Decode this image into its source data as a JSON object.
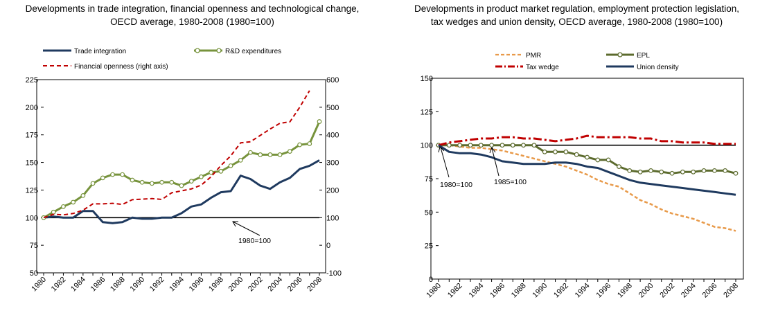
{
  "chart_data": [
    {
      "type": "line",
      "title_line1": "Developments in trade integration, financial openness and technological change,",
      "title_line2": "OECD average, 1980-2008 (1980=100)",
      "x": [
        1980,
        1981,
        1982,
        1983,
        1984,
        1985,
        1986,
        1987,
        1988,
        1989,
        1990,
        1991,
        1992,
        1993,
        1994,
        1995,
        1996,
        1997,
        1998,
        1999,
        2000,
        2001,
        2002,
        2003,
        2004,
        2005,
        2006,
        2007,
        2008
      ],
      "x_ticks": [
        "1980",
        "1982",
        "1984",
        "1986",
        "1988",
        "1990",
        "1992",
        "1994",
        "1996",
        "1998",
        "2000",
        "2002",
        "2004",
        "2006",
        "2008"
      ],
      "y_left": {
        "ylim": [
          50,
          225
        ],
        "ticks": [
          "50",
          "75",
          "100",
          "125",
          "150",
          "175",
          "200",
          "225"
        ]
      },
      "y_right": {
        "ylim": [
          -100,
          600
        ],
        "ticks": [
          "-100",
          "0",
          "100",
          "200",
          "300",
          "400",
          "500",
          "600"
        ]
      },
      "grid": false,
      "legend_placement": "top",
      "series": [
        {
          "name": "Trade integration",
          "axis": "left",
          "color": "#1f3a5f",
          "style": "solid",
          "values": [
            100,
            101,
            100,
            100,
            106,
            106,
            96,
            95,
            96,
            100,
            99,
            99,
            100,
            100,
            104,
            110,
            112,
            118,
            123,
            124,
            138,
            135,
            129,
            126,
            132,
            136,
            144,
            147,
            152
          ]
        },
        {
          "name": "R&D expenditures",
          "axis": "left",
          "color": "#77933c",
          "style": "solid-marker",
          "values": [
            100,
            105,
            110,
            114,
            120,
            131,
            136,
            139,
            139,
            134,
            132,
            131,
            132,
            132,
            129,
            133,
            137,
            141,
            142,
            147,
            152,
            159,
            157,
            157,
            157,
            160,
            166,
            167,
            187
          ]
        },
        {
          "name": "Financial openness  (right axis)",
          "axis": "right",
          "color": "#c00000",
          "style": "dashed",
          "values": [
            100,
            112,
            110,
            115,
            127,
            150,
            150,
            152,
            148,
            165,
            167,
            169,
            166,
            190,
            197,
            204,
            218,
            248,
            289,
            324,
            371,
            375,
            398,
            421,
            442,
            447,
            500,
            560,
            null
          ]
        }
      ],
      "annotation": {
        "text": "1980=100",
        "x": 1994.5,
        "y": 100
      }
    },
    {
      "type": "line",
      "title_line1": "Developments in product market regulation, employment protection legislation,",
      "title_line2": "tax wedges and union density, OECD average, 1980-2008 (1980=100)",
      "x": [
        1980,
        1981,
        1982,
        1983,
        1984,
        1985,
        1986,
        1987,
        1988,
        1989,
        1990,
        1991,
        1992,
        1993,
        1994,
        1995,
        1996,
        1997,
        1998,
        1999,
        2000,
        2001,
        2002,
        2003,
        2004,
        2005,
        2006,
        2007,
        2008
      ],
      "x_ticks": [
        "1980",
        "1982",
        "1984",
        "1986",
        "1988",
        "1990",
        "1992",
        "1994",
        "1996",
        "1998",
        "2000",
        "2002",
        "2004",
        "2006",
        "2008"
      ],
      "y_left": {
        "ylim": [
          0,
          150
        ],
        "ticks": [
          "0",
          "25",
          "50",
          "75",
          "100",
          "125",
          "150"
        ]
      },
      "grid": false,
      "legend_placement": "top",
      "series": [
        {
          "name": "PMR",
          "color": "#e89a4a",
          "style": "dashed",
          "values": [
            100,
            100,
            99,
            98,
            98,
            97,
            96,
            94,
            92,
            90,
            88,
            86,
            84,
            81,
            78,
            74,
            71,
            69,
            64,
            59,
            56,
            52,
            49,
            47,
            45,
            42,
            39,
            38,
            36
          ]
        },
        {
          "name": "EPL",
          "color": "#5c6b2e",
          "style": "solid-marker",
          "values": [
            100,
            100,
            100,
            100,
            100,
            100,
            100,
            100,
            100,
            100,
            95,
            95,
            95,
            93,
            91,
            89,
            89,
            84,
            81,
            80,
            81,
            80,
            79,
            80,
            80,
            81,
            81,
            81,
            79
          ]
        },
        {
          "name": "Tax wedge",
          "color": "#c00000",
          "style": "dashdot",
          "values": [
            100,
            102,
            103,
            104,
            105,
            105,
            106,
            106,
            105,
            105,
            104,
            103,
            104,
            105,
            107,
            106,
            106,
            106,
            106,
            105,
            105,
            103,
            103,
            102,
            102,
            102,
            101,
            101,
            101
          ]
        },
        {
          "name": "Union density",
          "color": "#1f3a5f",
          "style": "solid",
          "values": [
            100,
            95,
            94,
            94,
            93,
            91,
            88,
            87,
            86,
            86,
            86,
            87,
            87,
            86,
            84,
            83,
            80,
            77,
            74,
            72,
            71,
            70,
            69,
            68,
            67,
            66,
            65,
            64,
            63
          ]
        }
      ],
      "annotations": [
        {
          "text": "1980=100",
          "x": 1983,
          "y": 100
        },
        {
          "text": "1985=100",
          "x": 1987.5,
          "y": 100
        }
      ]
    }
  ]
}
